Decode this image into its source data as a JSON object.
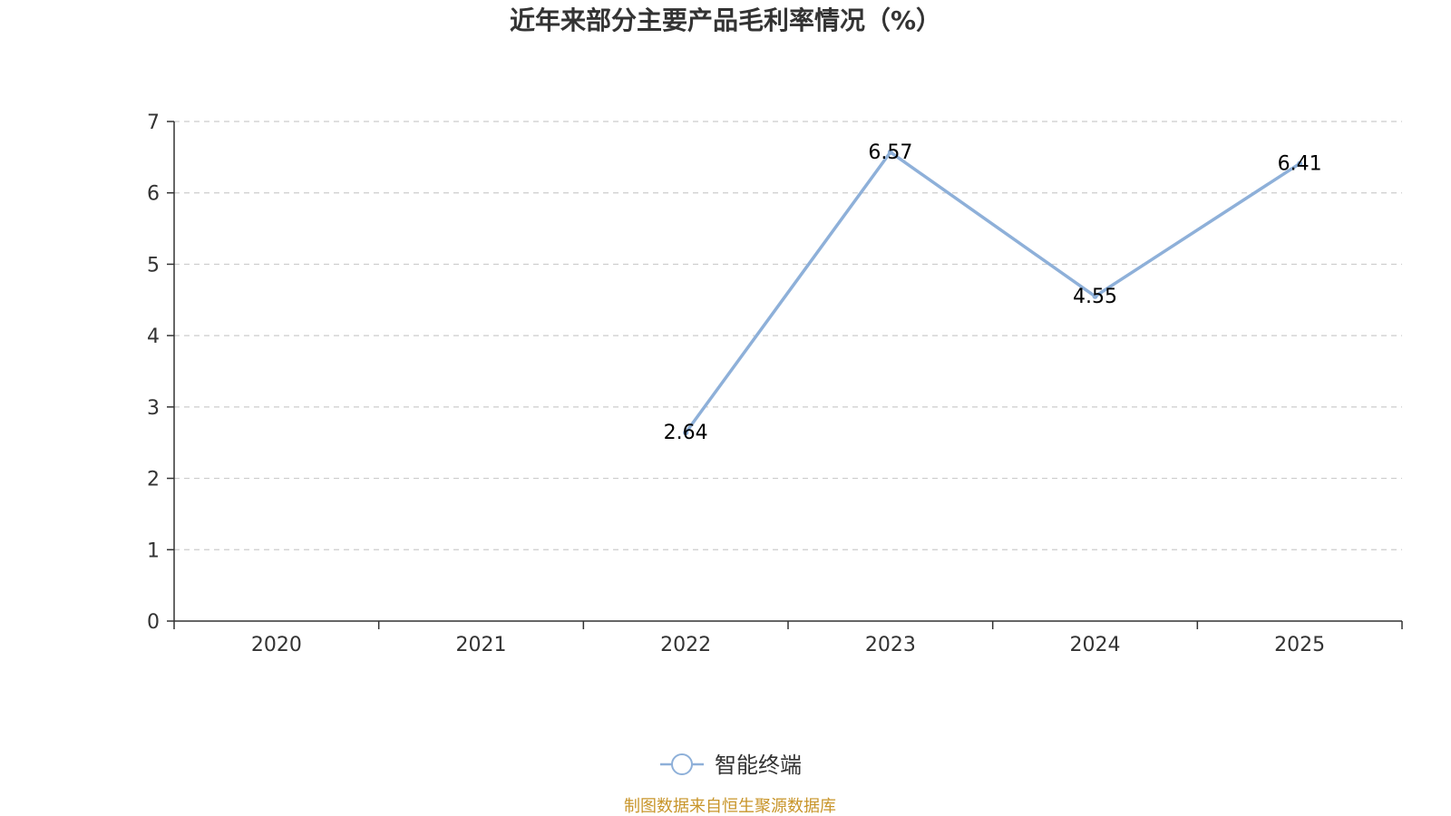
{
  "chart_data": {
    "type": "line",
    "title": "近年来部分主要产品毛利率情况（%）",
    "categories": [
      "2020",
      "2021",
      "2022",
      "2023",
      "2024",
      "2025"
    ],
    "series": [
      {
        "name": "智能终端",
        "values": [
          null,
          null,
          2.64,
          6.57,
          4.55,
          6.41
        ],
        "color": "#8eb0d9"
      }
    ],
    "yticks": [
      "0",
      "1",
      "2",
      "3",
      "4",
      "5",
      "6",
      "7"
    ],
    "ylim": [
      0,
      7
    ],
    "grid": true,
    "legend_position": "bottom-center"
  },
  "source_note": "制图数据来自恒生聚源数据库",
  "colors": {
    "axis": "#333333",
    "grid": "#cccccc",
    "source": "#c8952a"
  }
}
